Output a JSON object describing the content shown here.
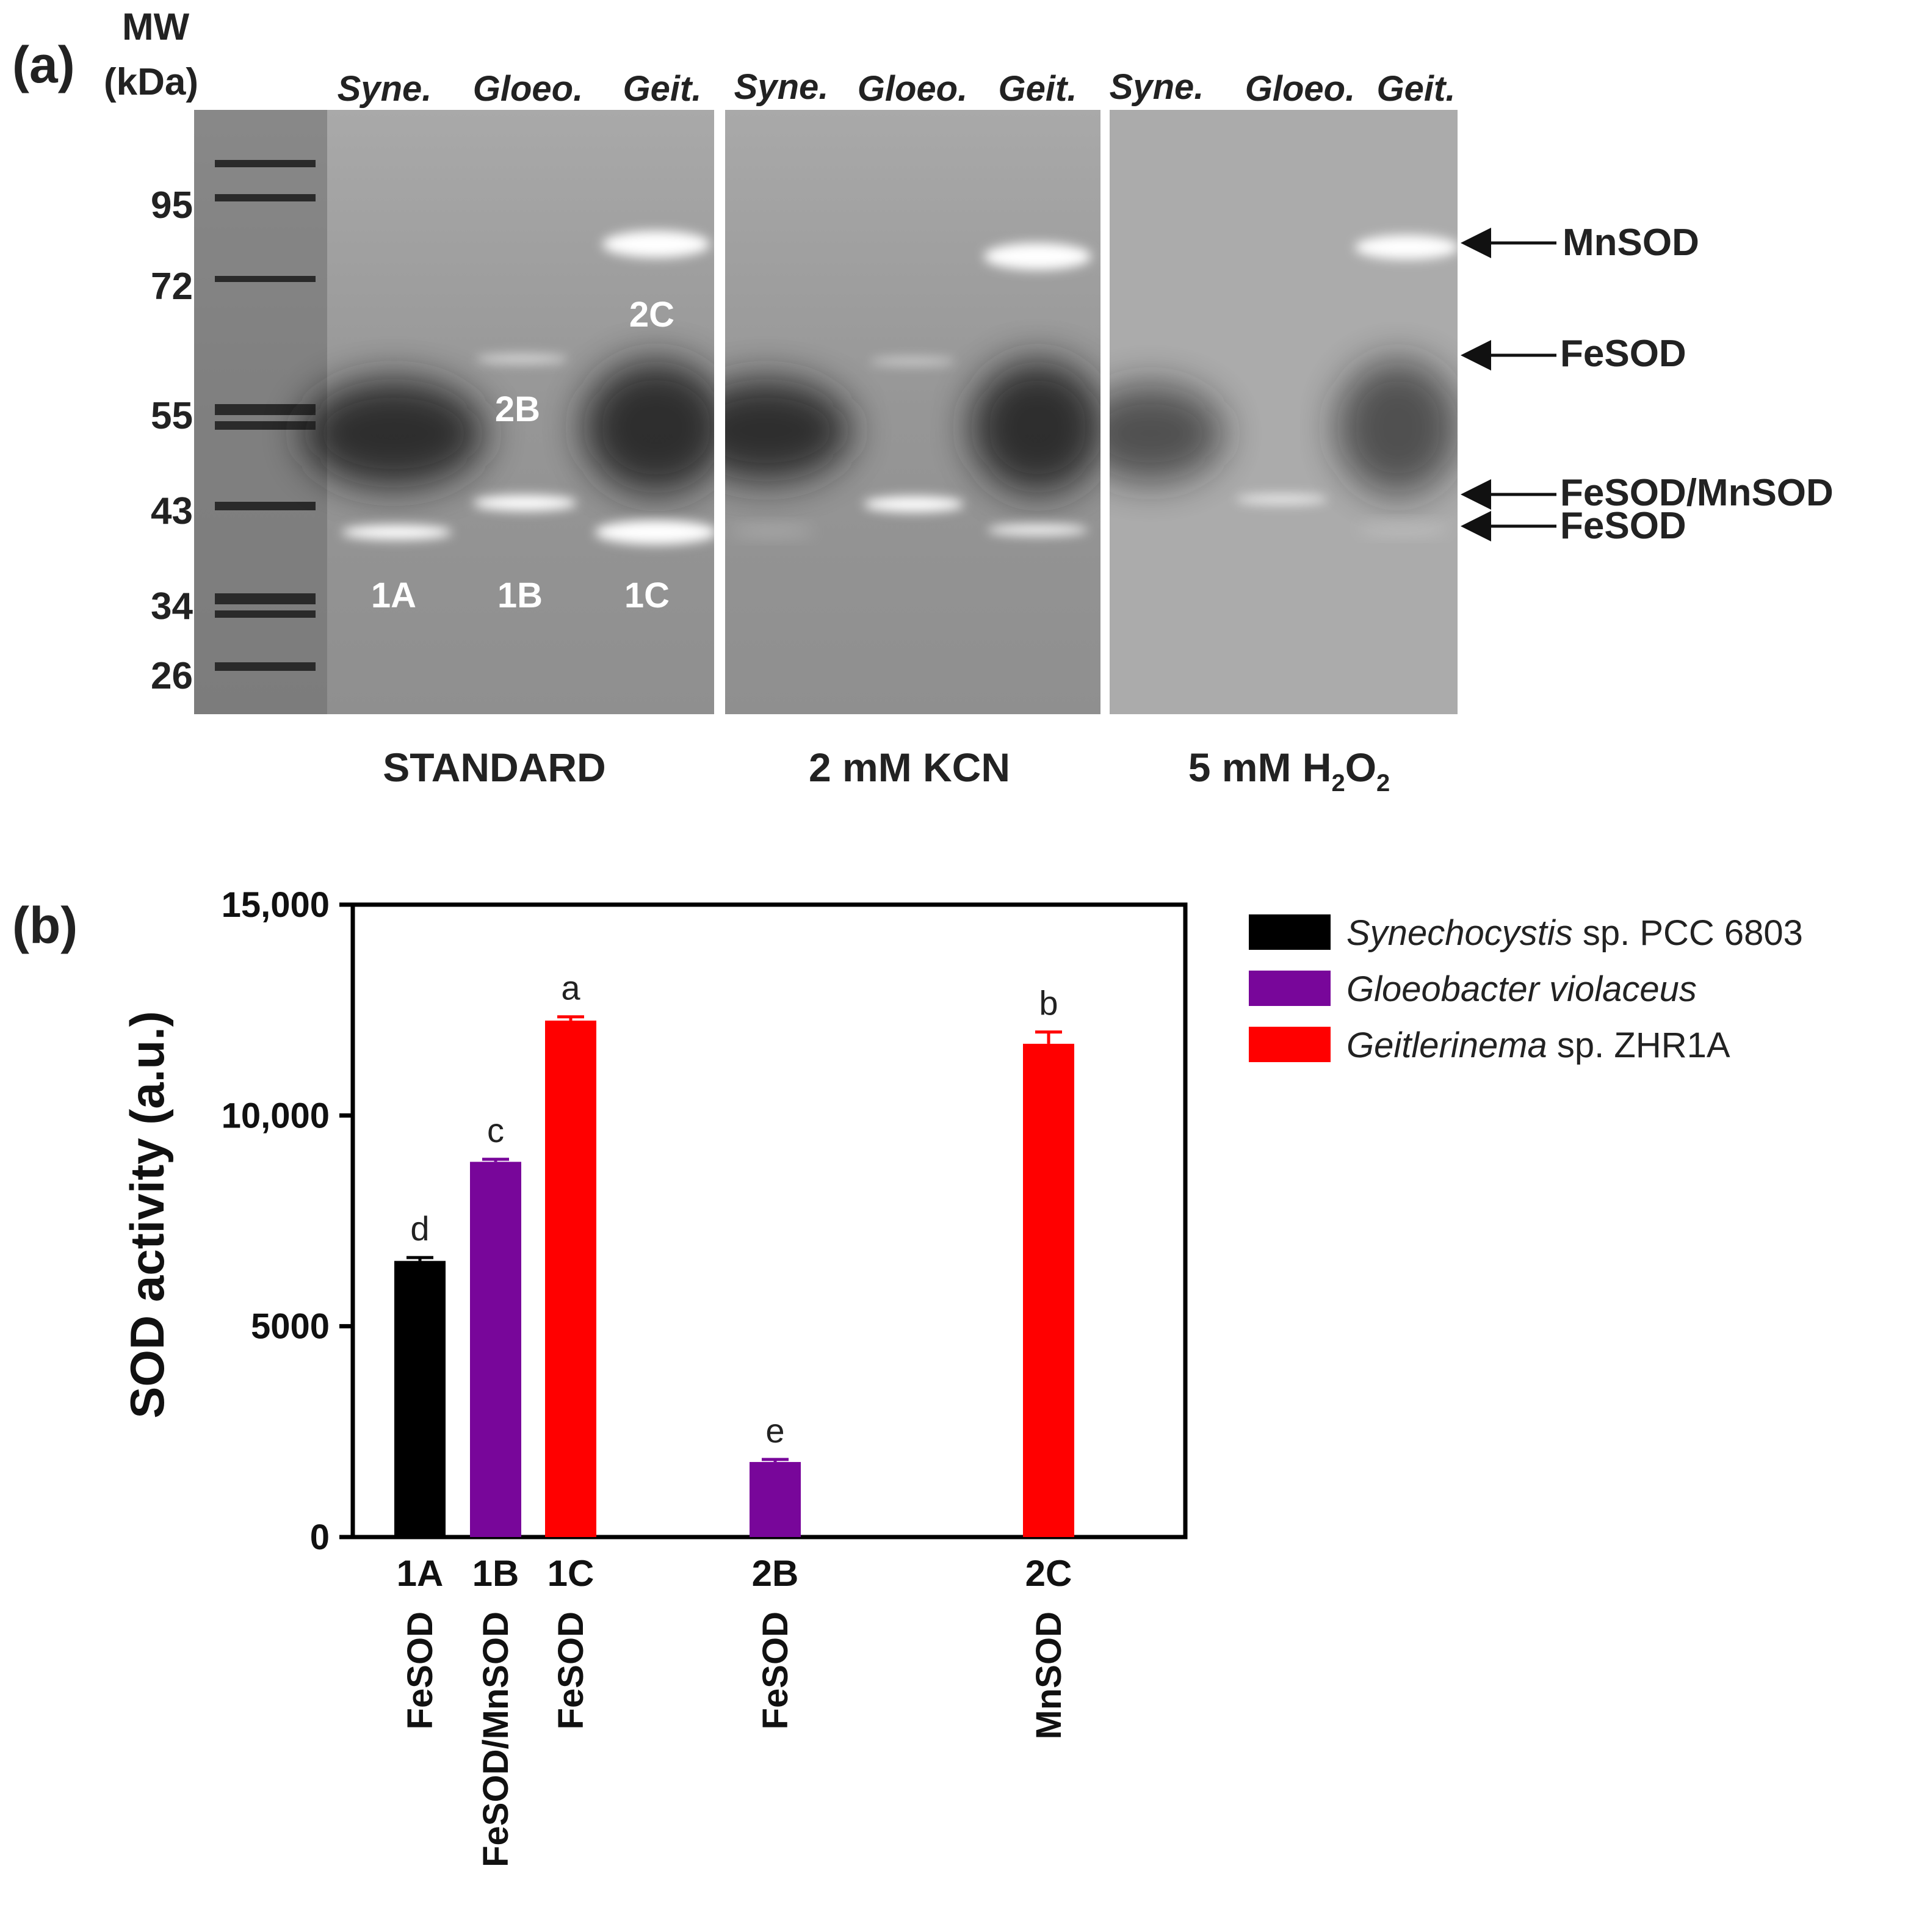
{
  "figure": {
    "panel_a_label": "(a)",
    "panel_b_label": "(b)"
  },
  "gel": {
    "mw_header_line1": "MW",
    "mw_header_line2": "(kDa)",
    "mw_markers": [
      "95",
      "72",
      "55",
      "43",
      "34",
      "26"
    ],
    "lane_headers": [
      "Syne.",
      "Gloeo.",
      "Geit.",
      "Syne.",
      "Gloeo.",
      "Geit.",
      "Syne.",
      "Gloeo.",
      "Geit."
    ],
    "band_labels": [
      "2C",
      "2B",
      "1A",
      "1B",
      "1C"
    ],
    "conditions": {
      "standard": "STANDARD",
      "kcn": "2 mM KCN",
      "h2o2_main": "5 mM H",
      "h2o2_sub1": "2",
      "h2o2_mid": "O",
      "h2o2_sub2": "2"
    },
    "arrow_labels": [
      "MnSOD",
      "FeSOD",
      "FeSOD/MnSOD",
      "FeSOD"
    ]
  },
  "chart_data": {
    "type": "bar",
    "categories": [
      "1A",
      "1B",
      "1C",
      "2B",
      "2C"
    ],
    "category_sublabels": [
      "FeSOD",
      "FeSOD/MnSOD",
      "FeSOD",
      "FeSOD",
      "MnSOD"
    ],
    "values": [
      6550,
      8900,
      12250,
      1780,
      11700
    ],
    "errors": [
      80,
      60,
      90,
      60,
      280
    ],
    "significance_letters": [
      "d",
      "c",
      "a",
      "e",
      "b"
    ],
    "bar_series": [
      "Synechocystis",
      "Gloeobacter",
      "Geitlerinema",
      "Gloeobacter",
      "Geitlerinema"
    ],
    "ylabel": "SOD activity (a.u.)",
    "ylim": [
      0,
      15000
    ],
    "yticks": [
      0,
      5000,
      10000,
      15000
    ],
    "ytick_labels": [
      "0",
      "5000",
      "10,000",
      "15,000"
    ],
    "grid": false,
    "legend_position": "top-right, outside plot",
    "series": [
      {
        "name": "Synechocystis sp. PCC 6803",
        "name_italic": "Synechocystis",
        "name_rest": " sp. PCC 6803",
        "color": "#000000"
      },
      {
        "name": "Gloeobacter violaceus",
        "name_italic": "Gloeobacter violaceus",
        "name_rest": "",
        "color": "#78069a"
      },
      {
        "name": "Geitlerinema sp. ZHR1A",
        "name_italic": "Geitlerinema",
        "name_rest": " sp. ZHR1A",
        "color": "#ff0000"
      }
    ]
  }
}
